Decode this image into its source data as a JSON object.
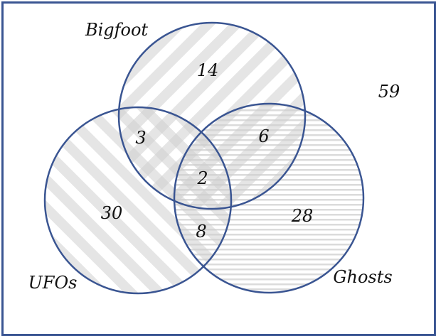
{
  "diagram": {
    "type": "venn-3",
    "sets": [
      {
        "id": "bigfoot",
        "label": "Bigfoot",
        "hatch": "diagonal-down"
      },
      {
        "id": "ufos",
        "label": "UFOs",
        "hatch": "diagonal-up"
      },
      {
        "id": "ghosts",
        "label": "Ghosts",
        "hatch": "horizontal"
      }
    ],
    "regions": {
      "bigfoot_only": "14",
      "ufos_only": "30",
      "ghosts_only": "28",
      "bigfoot_ufos": "3",
      "bigfoot_ghosts": "6",
      "ufos_ghosts": "8",
      "all_three": "2",
      "none": "59"
    },
    "colors": {
      "border": "#3a5592",
      "circle_stroke": "#3a5592",
      "hatch": "#c8c8c8"
    }
  }
}
